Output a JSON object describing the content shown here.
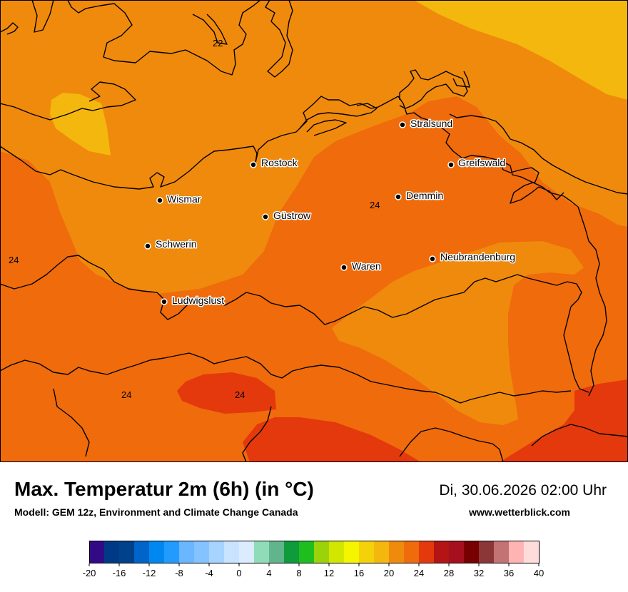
{
  "map": {
    "cities": [
      {
        "name": "Stralsund"
      },
      {
        "name": "Rostock"
      },
      {
        "name": "Greifswald"
      },
      {
        "name": "Wismar"
      },
      {
        "name": "Demmin"
      },
      {
        "name": "Güstrow"
      },
      {
        "name": "Schwerin"
      },
      {
        "name": "Neubrandenburg"
      },
      {
        "name": "Waren"
      },
      {
        "name": "Ludwigslust"
      }
    ],
    "isotherm_labels": [
      "22",
      "24",
      "24",
      "24",
      "24"
    ],
    "colors": {
      "c18": "#f4b70e",
      "c20": "#f08a0c",
      "c22": "#ef6b0c",
      "c24": "#e4390c",
      "coast": "#000000"
    }
  },
  "footer": {
    "title": "Max. Temperatur 2m (6h) (in °C)",
    "subtitle": "Modell: GEM 12z, Environment and Climate Change Canada",
    "valid_time": "Di, 30.06.2026 02:00 Uhr",
    "url": "www.wetterblick.com"
  },
  "legend": {
    "ticks": [
      "-20",
      "-16",
      "-12",
      "-8",
      "-4",
      "0",
      "4",
      "8",
      "12",
      "16",
      "20",
      "24",
      "28",
      "32",
      "36",
      "40"
    ],
    "colors": [
      "#320a86",
      "#003a86",
      "#00418c",
      "#0064c8",
      "#0087f0",
      "#229bff",
      "#6ab7ff",
      "#84c3ff",
      "#a6d3ff",
      "#c9e3ff",
      "#dbecff",
      "#90dcb8",
      "#61b48c",
      "#0f9b3c",
      "#1ebe1e",
      "#9bd20a",
      "#d2e600",
      "#f5f500",
      "#f3d20a",
      "#f4b70e",
      "#f08a0c",
      "#ef6b0c",
      "#e4390c",
      "#b41414",
      "#a50f1e",
      "#780000",
      "#8c3737",
      "#c37373",
      "#ffb4b4",
      "#ffdcdc"
    ]
  }
}
